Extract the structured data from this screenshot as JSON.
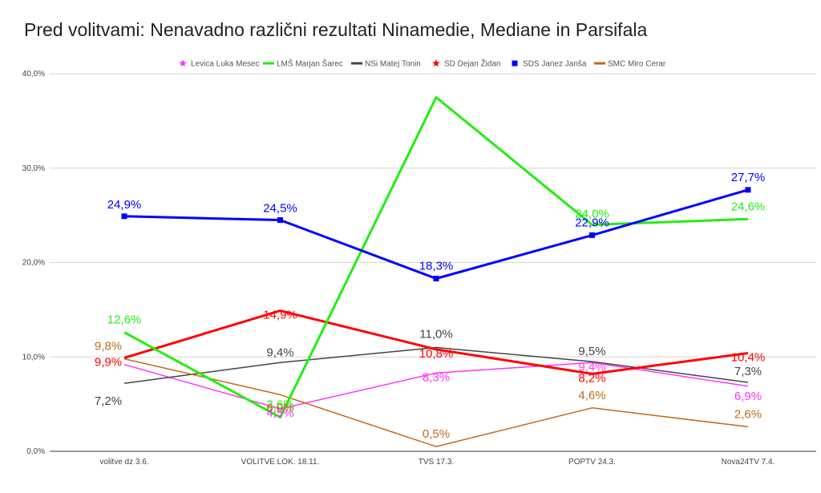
{
  "chart_data": {
    "type": "line",
    "title": "Pred volitvami: Nenavadno različni rezultati Ninamedie, Mediane in Parsifala",
    "xlabel": "",
    "ylabel": "",
    "categories": [
      "volitve dz 3.6.",
      "VOLITVE LOK. 18.11.",
      "TVS 17.3.",
      "POPTV 24.3.",
      "Nova24TV 7.4."
    ],
    "ylim": [
      0,
      40
    ],
    "yticks": [
      0,
      10,
      20,
      30,
      40
    ],
    "ytick_labels": [
      "0,0%",
      "10,0%",
      "20,0%",
      "30,0%",
      "40,0%"
    ],
    "grid": true,
    "legend_position": "top",
    "series": [
      {
        "name": "Levica Luka Mesec",
        "color": "#ff33ff",
        "marker": "star",
        "values": [
          9.2,
          4.5,
          8.3,
          9.4,
          6.9
        ],
        "labels": [
          "",
          "4,5%",
          "8,3%",
          "9,4%",
          "6,9%"
        ]
      },
      {
        "name": "LMŠ Marjan Šarec",
        "color": "#22ee11",
        "marker": "line",
        "values": [
          12.6,
          3.6,
          37.5,
          24.0,
          24.6
        ],
        "labels": [
          "12,6%",
          "3,6%",
          "",
          "24,0%",
          "24,6%"
        ]
      },
      {
        "name": "NSi Matej Tonin",
        "color": "#444444",
        "marker": "line",
        "values": [
          7.2,
          9.4,
          11.0,
          9.5,
          7.3
        ],
        "labels": [
          "7,2%",
          "9,4%",
          "11,0%",
          "9,5%",
          "7,3%"
        ]
      },
      {
        "name": "SD Dejan Židan",
        "color": "#ff0000",
        "marker": "star",
        "values": [
          9.9,
          14.9,
          10.8,
          8.2,
          10.4
        ],
        "labels": [
          "9,9%",
          "14,9%",
          "10,8%",
          "8,2%",
          "10,4%"
        ]
      },
      {
        "name": "SDS Janez Janša",
        "color": "#0000ff",
        "marker": "square",
        "values": [
          24.9,
          24.5,
          18.3,
          22.9,
          27.7
        ],
        "labels": [
          "24,9%",
          "24,5%",
          "18,3%",
          "22,9%",
          "27,7%"
        ]
      },
      {
        "name": "SMC Miro Cerar",
        "color": "#c06a1a",
        "marker": "line",
        "values": [
          9.8,
          6.0,
          0.5,
          4.6,
          2.6
        ],
        "labels": [
          "9,8%",
          "6,0%",
          "0,5%",
          "4,6%",
          "2,6%"
        ]
      }
    ]
  }
}
